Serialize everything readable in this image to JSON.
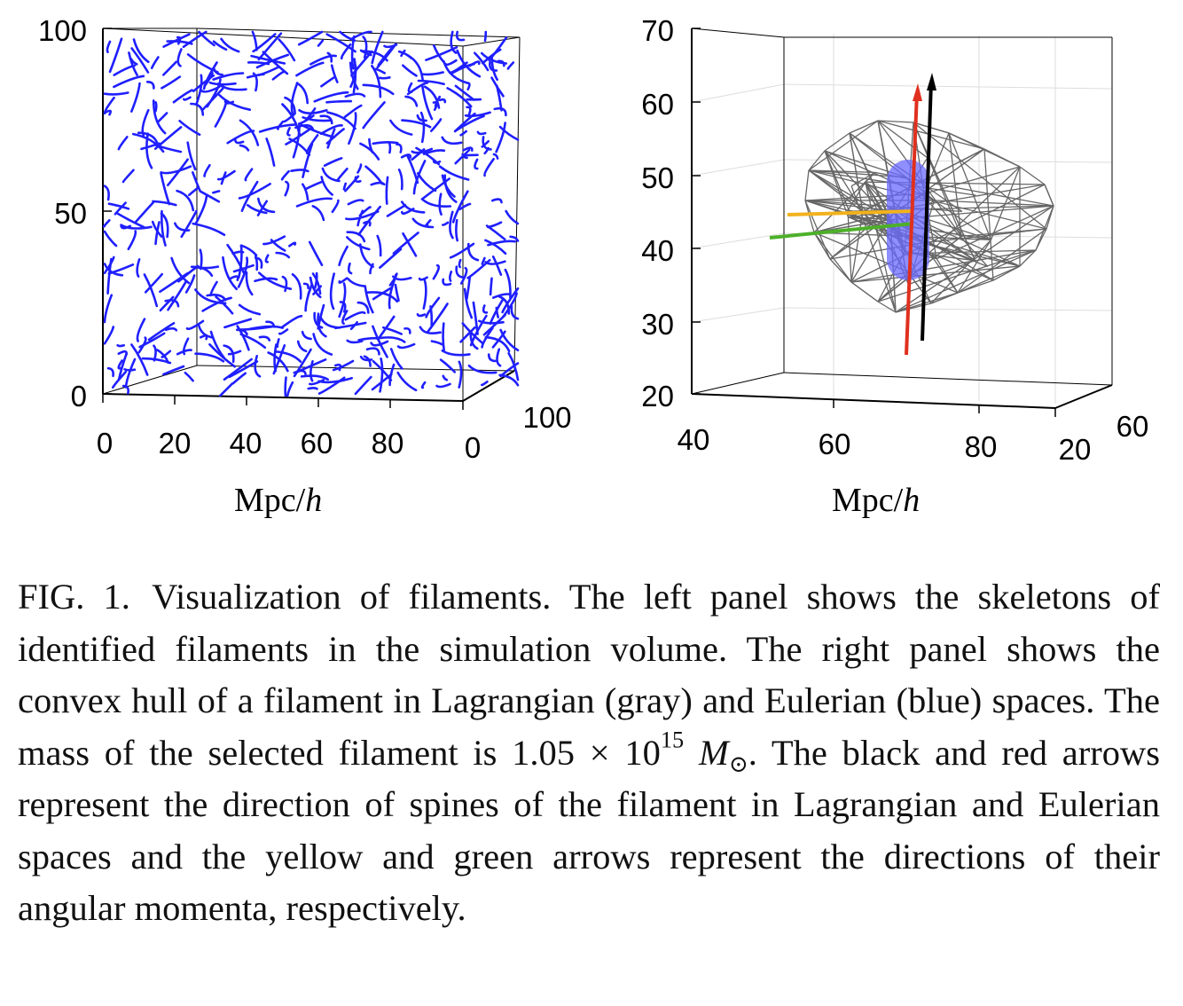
{
  "figure": {
    "left_panel": {
      "y_ticks": [
        "100",
        "50",
        "0"
      ],
      "x_ticks": [
        "0",
        "20",
        "40",
        "60",
        "80"
      ],
      "depth_ticks": [
        "0",
        "100"
      ],
      "axis_label_main": "Mpc/",
      "axis_label_h": "h",
      "filament_color": "#1f1fff"
    },
    "right_panel": {
      "y_ticks": [
        "70",
        "60",
        "50",
        "40",
        "30",
        "20"
      ],
      "x_ticks": [
        "40",
        "60",
        "80"
      ],
      "depth_ticks": [
        "20",
        "60"
      ],
      "axis_label_main": "Mpc/",
      "axis_label_h": "h",
      "hull_color": "#666666",
      "eulerian_color": "#6a6aff",
      "arrow_colors": {
        "black": "#000000",
        "red": "#e0301e",
        "yellow": "#f2b21c",
        "green": "#4db02a"
      }
    }
  },
  "caption": {
    "fig_id": "FIG. 1.",
    "part1": "Visualization of filaments. The left panel shows the skeletons of identified filaments in the simulation volume. The right panel shows the convex hull of a filament in Lagrangian (gray) and Eulerian (blue) spaces. The mass of the selected filament is 1.05 × 10",
    "exponent": "15",
    "mass_symbol": "M",
    "sun_symbol": "⊙",
    "part2": ". The black and red arrows represent the direction of spines of the filament in Lagrangian and Eulerian spaces and the yellow and green arrows represent the directions of their angular momenta, respectively."
  }
}
